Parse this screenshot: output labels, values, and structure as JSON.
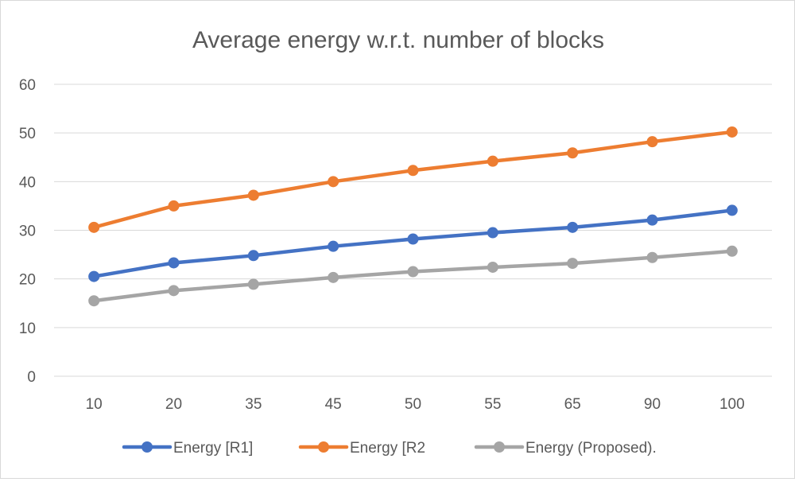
{
  "chart_data": {
    "type": "line",
    "title": "Average energy w.r.t. number of blocks",
    "xlabel": "",
    "ylabel": "",
    "categories": [
      "10",
      "20",
      "35",
      "45",
      "50",
      "55",
      "65",
      "90",
      "100"
    ],
    "ylim": [
      0,
      60
    ],
    "yticks": [
      "0",
      "10",
      "20",
      "30",
      "40",
      "50",
      "60"
    ],
    "grid": true,
    "legend_position": "bottom",
    "series": [
      {
        "name": "Energy [R1]",
        "color": "#4472C4",
        "values": [
          20.5,
          23.3,
          24.8,
          26.7,
          28.2,
          29.5,
          30.6,
          32.1,
          34.1
        ]
      },
      {
        "name": "Energy [R2",
        "color": "#ED7D31",
        "values": [
          30.6,
          35.0,
          37.2,
          40.0,
          42.3,
          44.2,
          45.9,
          48.2,
          50.2
        ]
      },
      {
        "name": "Energy (Proposed).",
        "color": "#A5A5A5",
        "values": [
          15.5,
          17.6,
          18.9,
          20.3,
          21.5,
          22.4,
          23.2,
          24.4,
          25.7
        ]
      }
    ]
  }
}
